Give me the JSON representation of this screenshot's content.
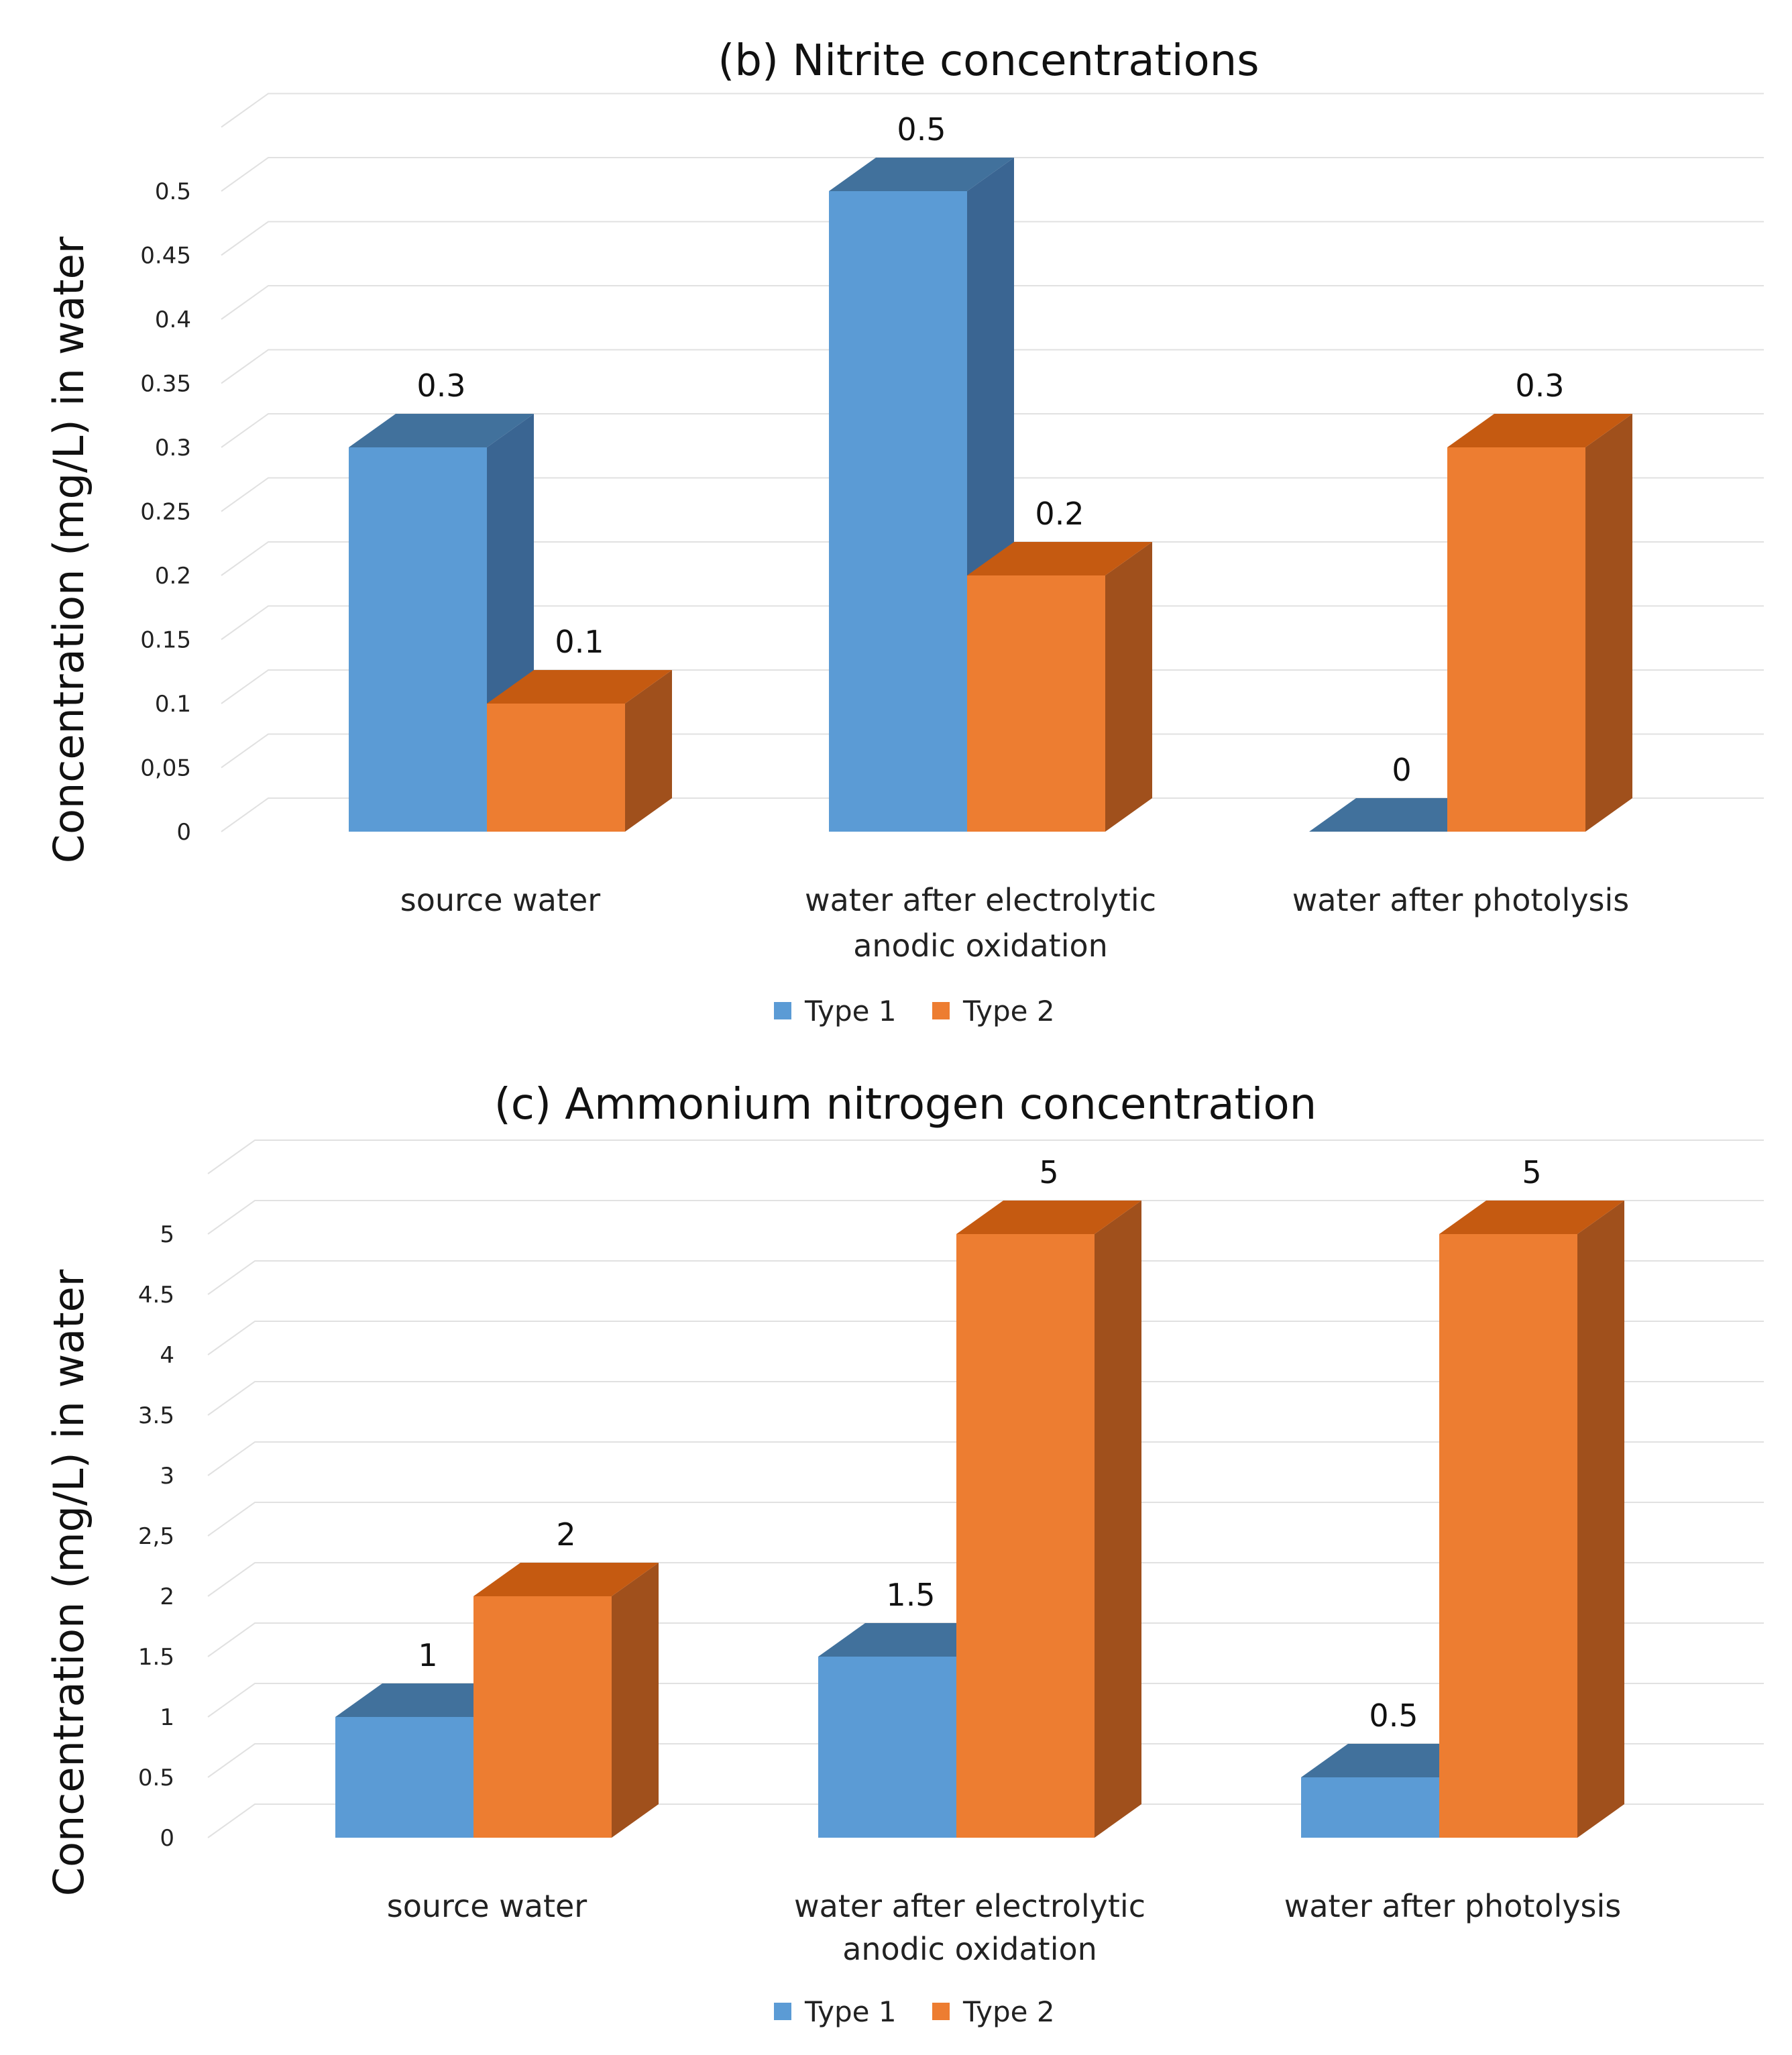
{
  "chart_data": [
    {
      "type": "bar",
      "title": "(b)  Nitrite concentrations",
      "ylabel": "Concentration (mg/L) in water",
      "xlabel": "",
      "categories": [
        [
          "source water"
        ],
        [
          "water after electrolytic",
          "anodic oxidation"
        ],
        [
          "water after photolysis"
        ]
      ],
      "series": [
        {
          "name": "Type 1",
          "values": [
            0.3,
            0.5,
            0
          ],
          "labels": [
            "0.3",
            "0.5",
            "0"
          ]
        },
        {
          "name": "Type 2",
          "values": [
            0.1,
            0.2,
            0.3
          ],
          "labels": [
            "0.1",
            "0.2",
            "0.3"
          ]
        }
      ],
      "yticks": [
        "0",
        "0,05",
        "0.1",
        "0.15",
        "0.2",
        "0.25",
        "0.3",
        "0.35",
        "0.4",
        "0.45",
        "0.5"
      ],
      "ylim": [
        0,
        0.55
      ],
      "grid": true,
      "legend": "bottom-center"
    },
    {
      "type": "bar",
      "title": "(c)  Ammonium nitrogen concentration",
      "ylabel": "Concentration (mg/L) in water",
      "xlabel": "",
      "categories": [
        [
          "source water"
        ],
        [
          "water after electrolytic",
          "anodic oxidation"
        ],
        [
          "water after photolysis"
        ]
      ],
      "series": [
        {
          "name": "Type 1",
          "values": [
            1,
            1.5,
            0.5
          ],
          "labels": [
            "1",
            "1.5",
            "0.5"
          ]
        },
        {
          "name": "Type 2",
          "values": [
            2,
            5,
            5
          ],
          "labels": [
            "2",
            "5",
            "5"
          ]
        }
      ],
      "yticks": [
        "0",
        "0.5",
        "1",
        "1.5",
        "2",
        "2,5",
        "3",
        "3.5",
        "4",
        "4.5",
        "5"
      ],
      "ylim": [
        0,
        5.5
      ],
      "grid": true,
      "legend": "bottom-center"
    }
  ],
  "colors": {
    "type1_front": "#5b9bd5",
    "type1_top": "#41719c",
    "type1_side": "#3a6592",
    "type2_front": "#ed7d31",
    "type2_top": "#c55a11",
    "type2_side": "#a0501c"
  }
}
